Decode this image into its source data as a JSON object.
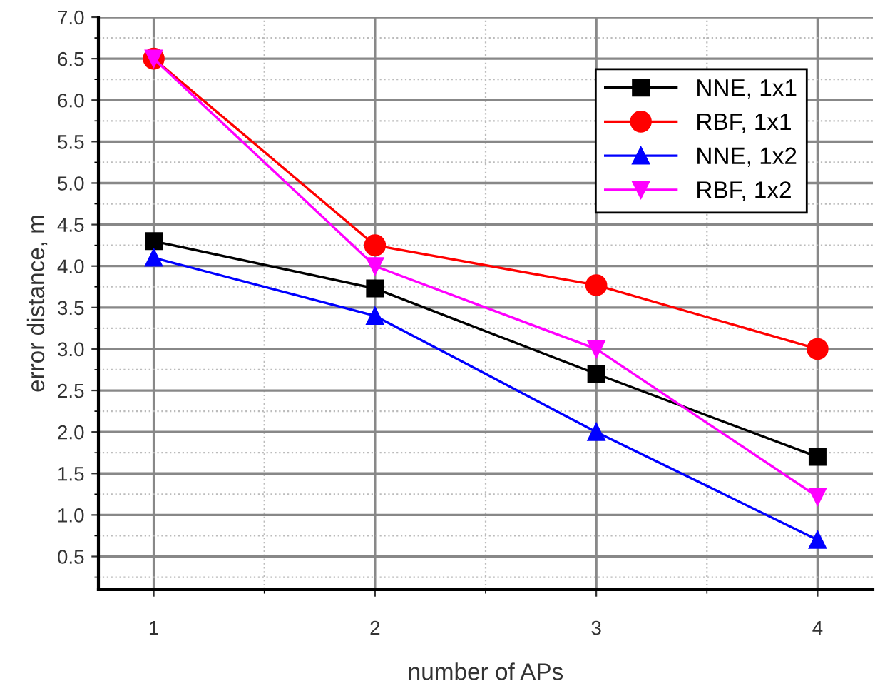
{
  "chart_data": {
    "type": "line",
    "xlabel": "number of APs",
    "ylabel": "error distance, m",
    "x": [
      1,
      2,
      3,
      4
    ],
    "series": [
      {
        "name": "NNE, 1x1",
        "color": "#000000",
        "marker": "square",
        "values": [
          4.3,
          3.73,
          2.7,
          1.7
        ]
      },
      {
        "name": "RBF, 1x1",
        "color": "#ff0000",
        "marker": "circle",
        "values": [
          6.5,
          4.25,
          3.77,
          3.0
        ]
      },
      {
        "name": "NNE, 1x2",
        "color": "#0000ff",
        "marker": "triangle",
        "values": [
          4.1,
          3.4,
          2.0,
          0.7
        ]
      },
      {
        "name": "RBF, 1x2",
        "color": "#ff00ff",
        "marker": "triangle_down",
        "values": [
          6.5,
          4.0,
          3.0,
          1.22
        ]
      }
    ],
    "xlim": [
      0.75,
      4.25
    ],
    "xticks": [
      1,
      2,
      3,
      4
    ],
    "ylim": [
      0.1,
      7.0
    ],
    "yticks": [
      {
        "value": 0.5,
        "label": "0.5"
      },
      {
        "value": 1,
        "label": "1.0"
      },
      {
        "value": 1.5,
        "label": "1.5"
      },
      {
        "value": 2,
        "label": "2.0"
      },
      {
        "value": 2.5,
        "label": "2.5"
      },
      {
        "value": 3,
        "label": "3.0"
      },
      {
        "value": 3.5,
        "label": "3.5"
      },
      {
        "value": 4,
        "label": "4.0"
      },
      {
        "value": 4.5,
        "label": "4.5"
      },
      {
        "value": 5,
        "label": "5.0"
      },
      {
        "value": 5.5,
        "label": "5.5"
      },
      {
        "value": 6,
        "label": "6.0"
      },
      {
        "value": 6.5,
        "label": "6.5"
      },
      {
        "value": 7,
        "label": "7.0"
      }
    ],
    "grid": true,
    "legend": "top right",
    "line_style": "solid"
  }
}
